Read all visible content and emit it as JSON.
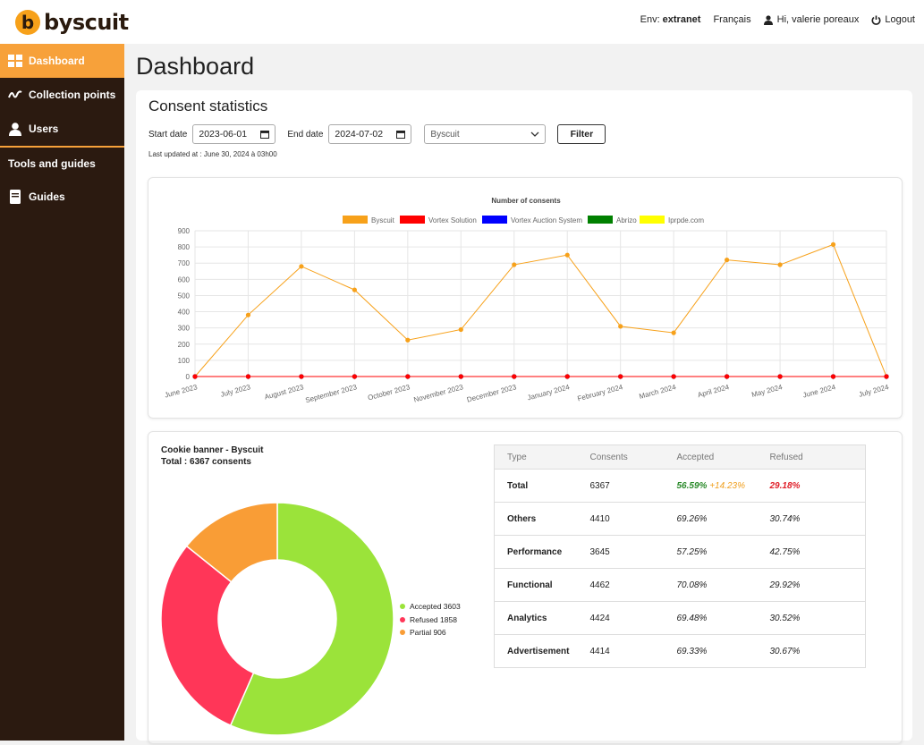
{
  "app": {
    "logo_letter": "b",
    "logo_text": "byscuit",
    "brand_color": "#f7a13a",
    "sidebar_color": "#2b1a10"
  },
  "topnav": {
    "env_label": "Env:",
    "env_value": "extranet",
    "language": "Français",
    "greeting": "Hi, valerie poreaux",
    "logout": "Logout"
  },
  "sidebar": {
    "items": [
      {
        "label": "Dashboard",
        "icon": "grid-icon",
        "active": true
      },
      {
        "label": "Collection points",
        "icon": "wave-icon"
      },
      {
        "label": "Users",
        "icon": "user-icon"
      }
    ],
    "section_title": "Tools and guides",
    "guides_label": "Guides"
  },
  "page": {
    "title": "Dashboard"
  },
  "stats": {
    "title": "Consent statistics",
    "start_label": "Start date",
    "start_value": "2023-06-01",
    "end_label": "End date",
    "end_value": "2024-07-02",
    "select_value": "Byscuit",
    "filter_label": "Filter",
    "updated": "Last updated at : June 30, 2024 à 03h00"
  },
  "chart_data": [
    {
      "type": "line",
      "title": "Number of consents",
      "categories": [
        "June 2023",
        "July 2023",
        "August 2023",
        "September 2023",
        "October 2023",
        "November 2023",
        "December 2023",
        "January 2024",
        "February 2024",
        "March 2024",
        "April 2024",
        "May 2024",
        "June 2024",
        "July 2024"
      ],
      "series": [
        {
          "name": "Byscuit",
          "color": "#f7a11a",
          "values": [
            0,
            380,
            680,
            535,
            225,
            290,
            690,
            750,
            310,
            270,
            720,
            690,
            815,
            0
          ]
        },
        {
          "name": "Vortex Solution",
          "color": "#ff0000",
          "values": [
            0,
            0,
            0,
            0,
            0,
            0,
            0,
            0,
            0,
            0,
            0,
            0,
            0,
            0
          ]
        },
        {
          "name": "Vortex Auction System",
          "color": "#0000ff",
          "values": [
            0,
            0,
            0,
            0,
            0,
            0,
            0,
            0,
            0,
            0,
            0,
            0,
            0,
            0
          ]
        },
        {
          "name": "Abrizo",
          "color": "#008000",
          "values": [
            0,
            0,
            0,
            0,
            0,
            0,
            0,
            0,
            0,
            0,
            0,
            0,
            0,
            0
          ]
        },
        {
          "name": "Iprpde.com",
          "color": "#ffff00",
          "values": [
            0,
            0,
            0,
            0,
            0,
            0,
            0,
            0,
            0,
            0,
            0,
            0,
            0,
            0
          ]
        }
      ],
      "ylim": [
        0,
        900
      ],
      "yticks": [
        "0",
        "100",
        "200",
        "300",
        "400",
        "500",
        "600",
        "700",
        "800",
        "900"
      ],
      "legend": "top",
      "grid": true
    },
    {
      "type": "pie",
      "title": "Cookie banner - Byscuit",
      "subtitle": "Total : 6367 consents",
      "slices": [
        {
          "label": "Accepted 3603",
          "value": 3603,
          "color": "#9be33a"
        },
        {
          "label": "Refused 1858",
          "value": 1858,
          "color": "#ff3658"
        },
        {
          "label": "Partial 906",
          "value": 906,
          "color": "#f99d36"
        }
      ],
      "legend": "right"
    }
  ],
  "table": {
    "headers": [
      "Type",
      "Consents",
      "Accepted",
      "Refused"
    ],
    "rows": [
      {
        "type": "Total",
        "consents": "6367",
        "accepted": "56.59%",
        "accepted_extra": "+14.23%",
        "refused": "29.18%"
      },
      {
        "type": "Others",
        "consents": "4410",
        "accepted": "69.26%",
        "refused": "30.74%"
      },
      {
        "type": "Performance",
        "consents": "3645",
        "accepted": "57.25%",
        "refused": "42.75%"
      },
      {
        "type": "Functional",
        "consents": "4462",
        "accepted": "70.08%",
        "refused": "29.92%"
      },
      {
        "type": "Analytics",
        "consents": "4424",
        "accepted": "69.48%",
        "refused": "30.52%"
      },
      {
        "type": "Advertisement",
        "consents": "4414",
        "accepted": "69.33%",
        "refused": "30.67%"
      }
    ]
  }
}
